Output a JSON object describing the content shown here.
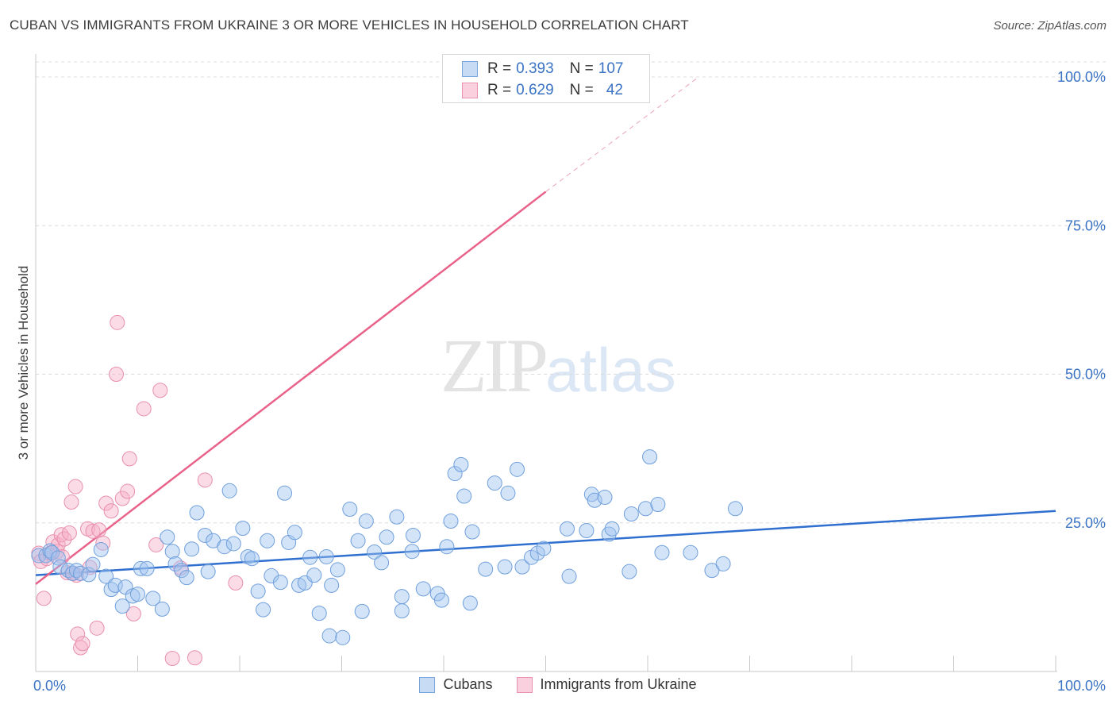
{
  "header": {
    "title": "CUBAN VS IMMIGRANTS FROM UKRAINE 3 OR MORE VEHICLES IN HOUSEHOLD CORRELATION CHART",
    "source": "Source: ZipAtlas.com"
  },
  "watermark": {
    "zip": "ZIP",
    "atlas": "atlas"
  },
  "legend": {
    "r_label": "R =",
    "n_label": "N =",
    "rows": [
      {
        "r": "0.393",
        "n": "107",
        "color": "#a9c8f0",
        "border": "#7aa6e0"
      },
      {
        "r": "0.629",
        "n": "42",
        "color": "#f8c0d2",
        "border": "#ea92b0"
      }
    ]
  },
  "bottom_legend": {
    "cubans": "Cubans",
    "ukraine": "Immigrants from Ukraine"
  },
  "colors": {
    "blue": "#3a73c4",
    "blue_line": "#2f6fcf",
    "pink_line": "#e8628a",
    "tick_label": "#3a73c4"
  },
  "chart_data": {
    "type": "scatter",
    "title": "CUBAN VS IMMIGRANTS FROM UKRAINE 3 OR MORE VEHICLES IN HOUSEHOLD CORRELATION CHART",
    "xlabel": "",
    "ylabel": "3 or more Vehicles in Household",
    "xlim": [
      0,
      100
    ],
    "ylim": [
      0,
      100
    ],
    "x_tick_labels": [
      {
        "value": 0,
        "label": "0.0%"
      },
      {
        "value": 100,
        "label": "100.0%"
      }
    ],
    "y_tick_labels": [
      {
        "value": 25,
        "label": "25.0%"
      },
      {
        "value": 50,
        "label": "50.0%"
      },
      {
        "value": 75,
        "label": "75.0%"
      },
      {
        "value": 100,
        "label": "100.0%"
      }
    ],
    "series": [
      {
        "name": "Cubans",
        "r": 0.393,
        "n": 107,
        "trend": {
          "x0": 0,
          "y0": 16.2,
          "x1": 100,
          "y1": 27.0
        },
        "points": [
          [
            0.3,
            19.5
          ],
          [
            1.0,
            19.5
          ],
          [
            1.4,
            20.3
          ],
          [
            1.6,
            20.0
          ],
          [
            2.2,
            19.1
          ],
          [
            2.4,
            17.6
          ],
          [
            3.2,
            17.0
          ],
          [
            3.6,
            16.5
          ],
          [
            4.0,
            17.0
          ],
          [
            4.4,
            16.5
          ],
          [
            5.2,
            16.3
          ],
          [
            5.6,
            18.0
          ],
          [
            6.4,
            20.5
          ],
          [
            6.9,
            16.0
          ],
          [
            7.4,
            13.8
          ],
          [
            7.8,
            14.5
          ],
          [
            8.5,
            11.0
          ],
          [
            8.8,
            14.2
          ],
          [
            9.5,
            12.7
          ],
          [
            10.0,
            13.0
          ],
          [
            10.3,
            17.3
          ],
          [
            10.9,
            17.3
          ],
          [
            11.5,
            12.3
          ],
          [
            12.4,
            10.5
          ],
          [
            12.9,
            22.6
          ],
          [
            13.4,
            20.2
          ],
          [
            13.7,
            18.1
          ],
          [
            14.3,
            17.0
          ],
          [
            14.8,
            15.8
          ],
          [
            15.3,
            20.6
          ],
          [
            15.8,
            26.7
          ],
          [
            16.6,
            22.9
          ],
          [
            16.9,
            16.8
          ],
          [
            17.4,
            22.0
          ],
          [
            18.5,
            21.0
          ],
          [
            19.0,
            30.4
          ],
          [
            19.4,
            21.5
          ],
          [
            20.3,
            24.1
          ],
          [
            20.8,
            19.3
          ],
          [
            21.2,
            19.0
          ],
          [
            21.8,
            13.5
          ],
          [
            22.3,
            10.4
          ],
          [
            22.7,
            22.0
          ],
          [
            23.1,
            16.1
          ],
          [
            24.0,
            15.0
          ],
          [
            24.4,
            30.0
          ],
          [
            24.8,
            21.7
          ],
          [
            25.4,
            23.4
          ],
          [
            25.8,
            14.5
          ],
          [
            26.4,
            14.9
          ],
          [
            26.9,
            19.2
          ],
          [
            27.3,
            16.2
          ],
          [
            27.8,
            9.8
          ],
          [
            28.5,
            19.3
          ],
          [
            28.8,
            6.0
          ],
          [
            29.0,
            14.5
          ],
          [
            29.6,
            17.1
          ],
          [
            30.1,
            5.7
          ],
          [
            30.8,
            27.3
          ],
          [
            31.6,
            22.0
          ],
          [
            32.0,
            10.1
          ],
          [
            32.4,
            25.3
          ],
          [
            33.2,
            20.1
          ],
          [
            33.9,
            18.3
          ],
          [
            34.4,
            22.6
          ],
          [
            35.4,
            26.0
          ],
          [
            35.9,
            10.2
          ],
          [
            35.9,
            12.6
          ],
          [
            36.9,
            20.2
          ],
          [
            37.0,
            22.9
          ],
          [
            38.0,
            13.9
          ],
          [
            39.4,
            13.1
          ],
          [
            39.8,
            12.0
          ],
          [
            40.3,
            21.0
          ],
          [
            40.7,
            25.3
          ],
          [
            41.1,
            33.3
          ],
          [
            41.7,
            34.8
          ],
          [
            42.0,
            29.5
          ],
          [
            42.6,
            11.5
          ],
          [
            42.8,
            23.5
          ],
          [
            44.1,
            17.2
          ],
          [
            45.0,
            31.7
          ],
          [
            46.0,
            17.6
          ],
          [
            46.3,
            30.0
          ],
          [
            47.2,
            34.0
          ],
          [
            47.7,
            17.6
          ],
          [
            48.6,
            19.2
          ],
          [
            49.2,
            19.9
          ],
          [
            49.8,
            20.7
          ],
          [
            52.1,
            24.0
          ],
          [
            52.3,
            16.0
          ],
          [
            54.0,
            23.7
          ],
          [
            54.5,
            29.8
          ],
          [
            54.8,
            28.8
          ],
          [
            55.8,
            29.3
          ],
          [
            56.2,
            23.1
          ],
          [
            56.5,
            24.0
          ],
          [
            58.2,
            16.8
          ],
          [
            58.4,
            26.5
          ],
          [
            59.8,
            27.4
          ],
          [
            60.2,
            36.1
          ],
          [
            61.0,
            28.1
          ],
          [
            61.4,
            20.0
          ],
          [
            64.2,
            20.0
          ],
          [
            66.3,
            17.0
          ],
          [
            67.4,
            18.1
          ],
          [
            68.6,
            27.4
          ]
        ]
      },
      {
        "name": "Immigrants from Ukraine",
        "r": 0.629,
        "n": 42,
        "trend": {
          "x0": 0,
          "y0": 14.7,
          "x1": 50,
          "y1": 80.7,
          "dashed_to": {
            "x": 65,
            "y": 100
          }
        },
        "points": [
          [
            0.3,
            19.9
          ],
          [
            0.5,
            18.5
          ],
          [
            0.8,
            12.3
          ],
          [
            1.1,
            19.0
          ],
          [
            1.4,
            19.9
          ],
          [
            1.7,
            21.8
          ],
          [
            2.1,
            20.2
          ],
          [
            2.2,
            21.3
          ],
          [
            2.5,
            23.0
          ],
          [
            2.6,
            19.3
          ],
          [
            2.8,
            22.3
          ],
          [
            3.1,
            16.6
          ],
          [
            3.3,
            23.3
          ],
          [
            3.5,
            28.5
          ],
          [
            3.7,
            16.5
          ],
          [
            3.9,
            31.1
          ],
          [
            4.0,
            16.2
          ],
          [
            4.1,
            6.3
          ],
          [
            4.4,
            4.0
          ],
          [
            4.6,
            4.7
          ],
          [
            5.1,
            24.0
          ],
          [
            5.3,
            17.5
          ],
          [
            5.6,
            23.6
          ],
          [
            6.0,
            7.3
          ],
          [
            6.2,
            23.8
          ],
          [
            6.6,
            21.6
          ],
          [
            6.9,
            28.3
          ],
          [
            7.4,
            27.0
          ],
          [
            7.9,
            50.0
          ],
          [
            8.0,
            58.7
          ],
          [
            8.5,
            29.1
          ],
          [
            9.0,
            30.3
          ],
          [
            9.2,
            35.8
          ],
          [
            9.6,
            9.7
          ],
          [
            10.6,
            44.2
          ],
          [
            11.8,
            21.3
          ],
          [
            12.2,
            47.3
          ],
          [
            13.4,
            2.2
          ],
          [
            14.2,
            17.4
          ],
          [
            15.6,
            2.3
          ],
          [
            16.6,
            32.2
          ],
          [
            19.6,
            14.9
          ]
        ]
      }
    ]
  }
}
